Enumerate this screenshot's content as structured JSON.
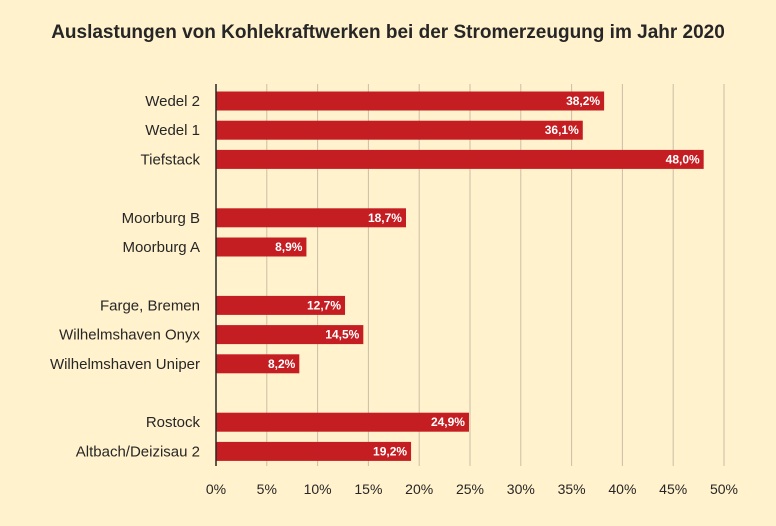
{
  "chart_data": {
    "type": "bar",
    "orientation": "horizontal",
    "title": "Auslastungen von Kohlekraftwerken bei der Stromerzeugung im Jahr 2020",
    "xlabel": "",
    "ylabel": "",
    "xlim": [
      0,
      50
    ],
    "x_ticks": [
      "0%",
      "5%",
      "10%",
      "15%",
      "20%",
      "25%",
      "30%",
      "35%",
      "40%",
      "45%",
      "50%"
    ],
    "grid": "vertical",
    "legend": "none",
    "bar_color": "#c41e22",
    "grid_color": "#c9bfa7",
    "background_color": "#fff2cc",
    "categories": [
      "Wedel 2",
      "Wedel 1",
      "Tiefstack",
      "",
      "Moorburg B",
      "Moorburg A",
      "",
      "Farge, Bremen",
      "Wilhelmshaven Onyx",
      "Wilhelmshaven Uniper",
      "",
      "Rostock",
      "Altbach/Deizisau 2"
    ],
    "values": [
      38.2,
      36.1,
      48.0,
      null,
      18.7,
      8.9,
      null,
      12.7,
      14.5,
      8.2,
      null,
      24.9,
      19.2
    ],
    "data_labels": [
      "38,2%",
      "36,1%",
      "48,0%",
      "",
      "18,7%",
      "8,9%",
      "",
      "12,7%",
      "14,5%",
      "8,2%",
      "",
      "24,9%",
      "19,2%"
    ]
  }
}
